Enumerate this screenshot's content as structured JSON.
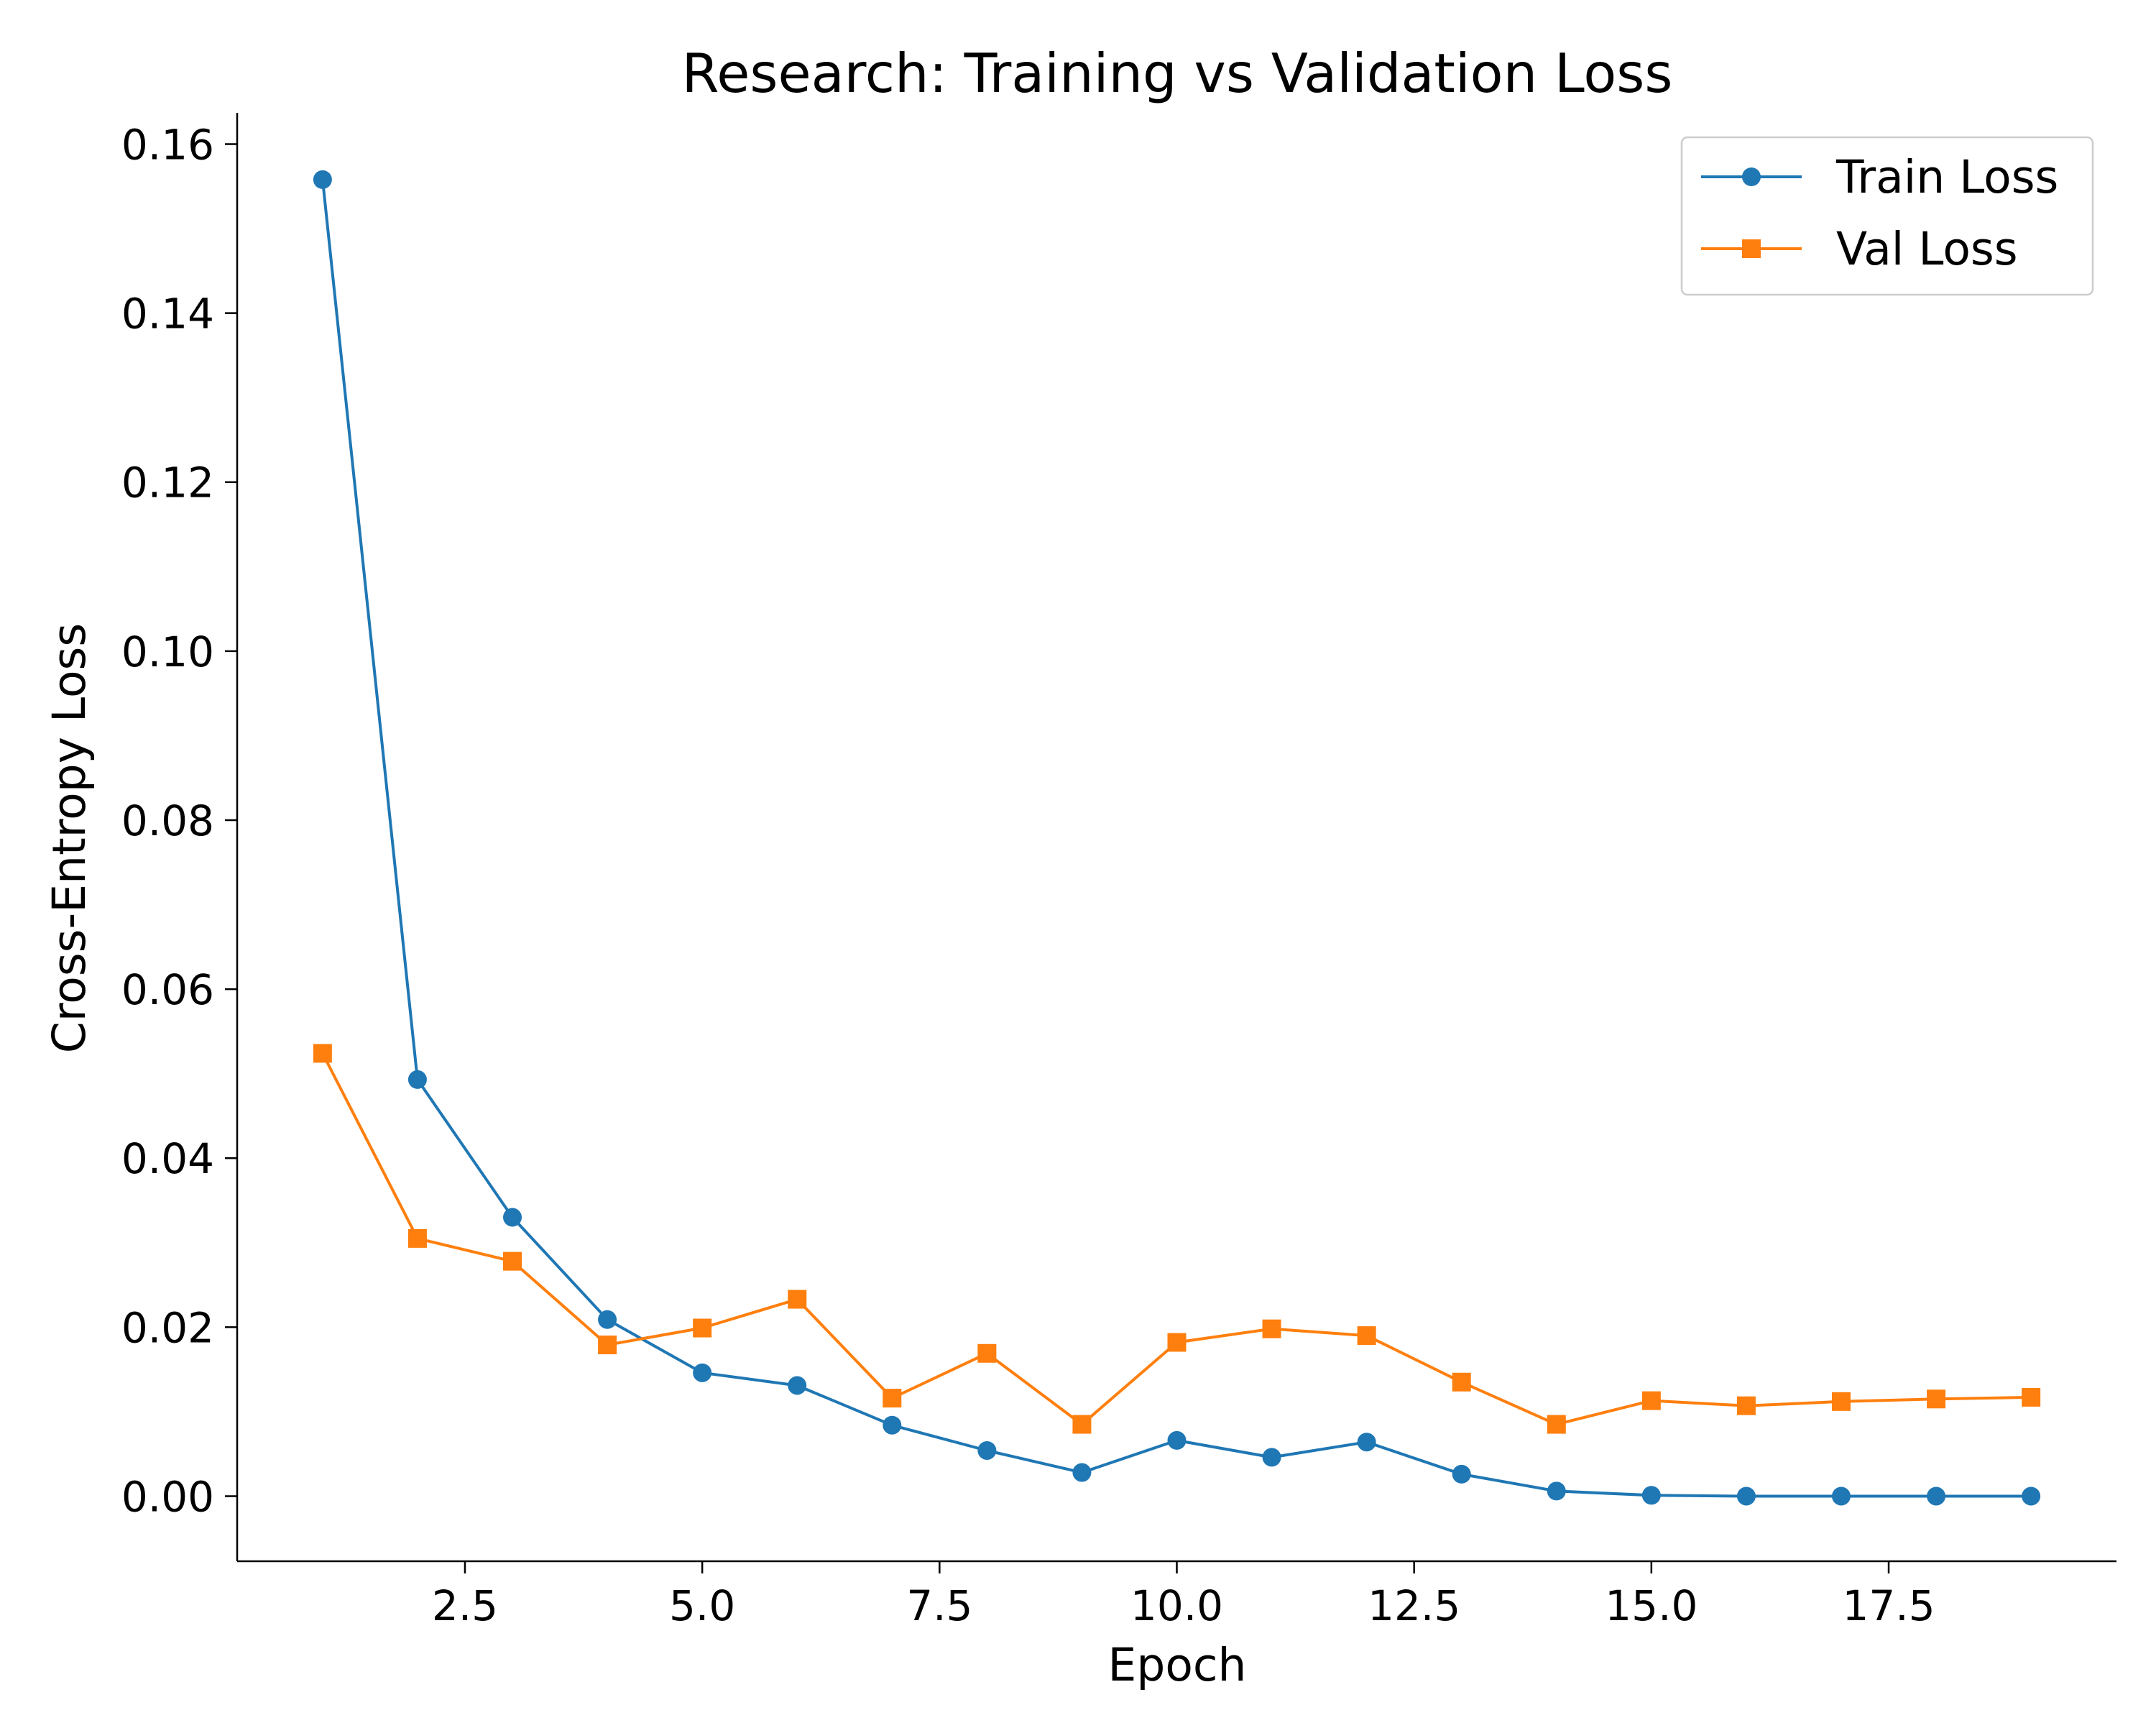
{
  "chart_data": {
    "type": "line",
    "title": "Research: Training vs Validation Loss",
    "xlabel": "Epoch",
    "ylabel": "Cross-Entropy Loss",
    "xlim": [
      0.1,
      19.9
    ],
    "ylim": [
      -0.0077,
      0.1637
    ],
    "x_ticks": [
      2.5,
      5.0,
      7.5,
      10.0,
      12.5,
      15.0,
      17.5
    ],
    "x_tick_labels": [
      "2.5",
      "5.0",
      "7.5",
      "10.0",
      "12.5",
      "15.0",
      "17.5"
    ],
    "y_ticks": [
      0.0,
      0.02,
      0.04,
      0.06,
      0.08,
      0.1,
      0.12,
      0.14,
      0.16
    ],
    "y_tick_labels": [
      "0.00",
      "0.02",
      "0.04",
      "0.06",
      "0.08",
      "0.10",
      "0.12",
      "0.14",
      "0.16"
    ],
    "grid": false,
    "legend_position": "top-right",
    "x": [
      1,
      2,
      3,
      4,
      5,
      6,
      7,
      8,
      9,
      10,
      11,
      12,
      13,
      14,
      15,
      16,
      17,
      18,
      19
    ],
    "series": [
      {
        "name": "Train Loss",
        "color": "#1f77b4",
        "marker": "circle",
        "values": [
          0.1558,
          0.0493,
          0.033,
          0.0209,
          0.0146,
          0.0131,
          0.0084,
          0.0054,
          0.0028,
          0.0066,
          0.0046,
          0.0064,
          0.0026,
          0.0006,
          0.0001,
          0.0,
          0.0,
          0.0,
          0.0
        ]
      },
      {
        "name": "Val Loss",
        "color": "#ff7f0e",
        "marker": "square",
        "values": [
          0.0524,
          0.0305,
          0.0278,
          0.0179,
          0.0199,
          0.0233,
          0.0116,
          0.0169,
          0.0085,
          0.0182,
          0.0198,
          0.019,
          0.0135,
          0.0085,
          0.0113,
          0.0107,
          0.0112,
          0.0115,
          0.0117
        ]
      }
    ]
  }
}
